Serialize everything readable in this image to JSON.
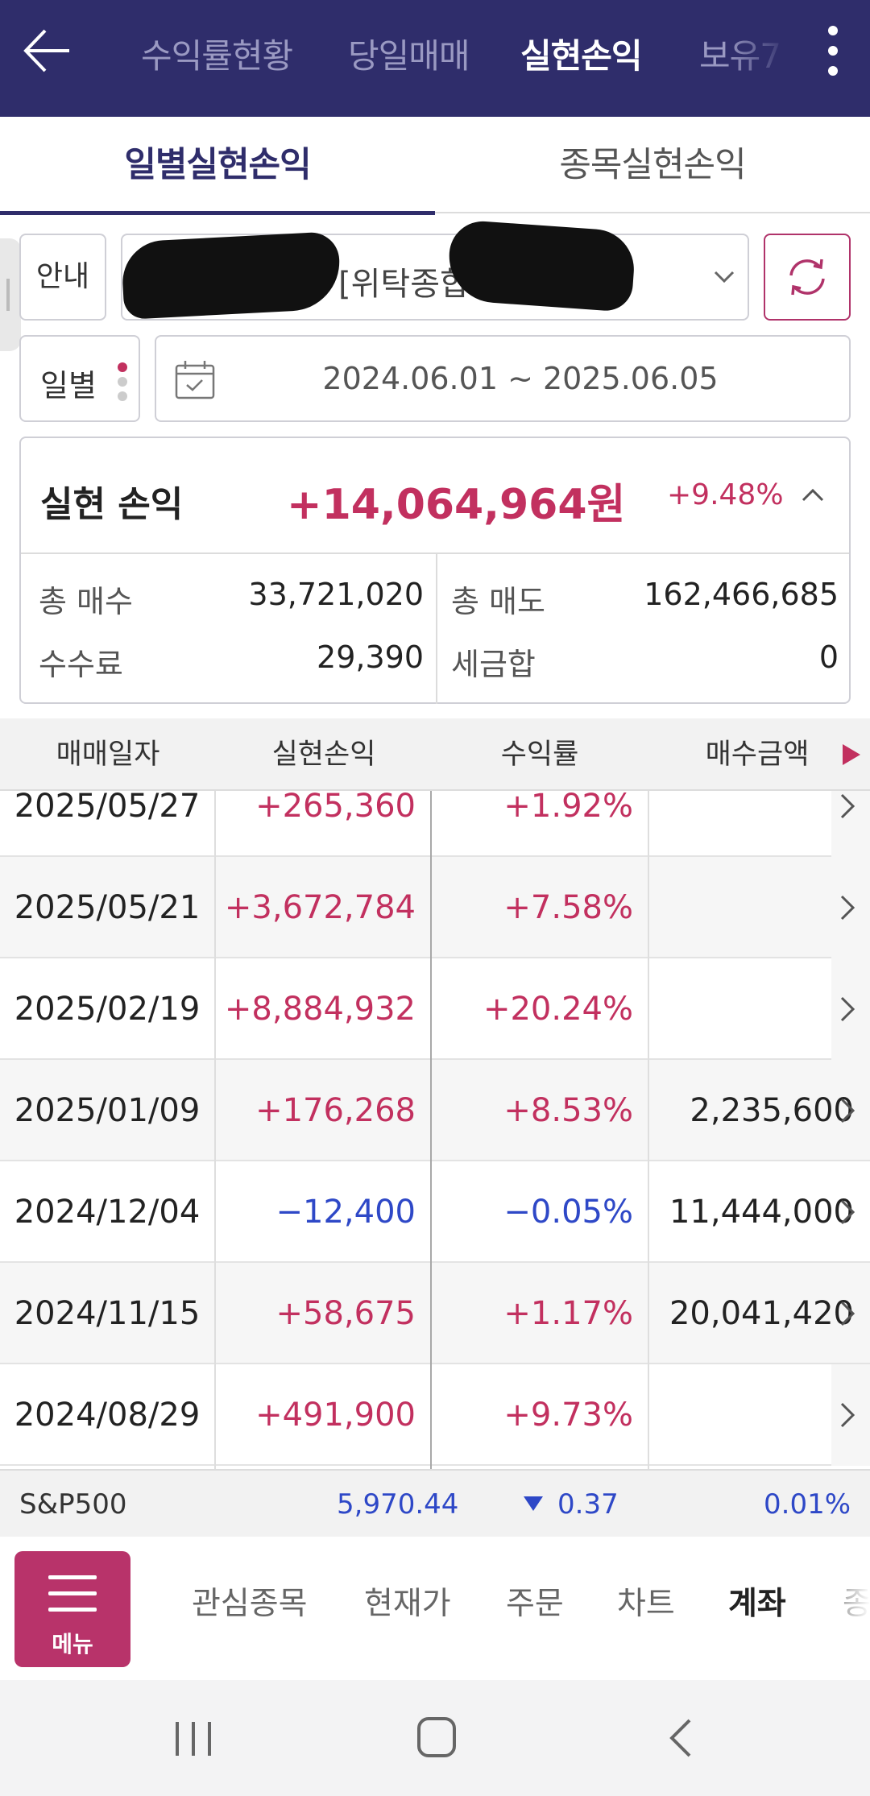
{
  "appbar": {
    "tabs": [
      {
        "label": "수익률현황",
        "active": false
      },
      {
        "label": "당일매매",
        "active": false
      },
      {
        "label": "실현손익",
        "active": true
      },
      {
        "label": "보유7",
        "active": false
      }
    ],
    "back_icon": "arrow-left-icon",
    "more_icon": "kebab-menu-icon"
  },
  "subtabs": [
    {
      "label": "일별실현손익",
      "active": true
    },
    {
      "label": "종목실현손익",
      "active": false
    }
  ],
  "filters": {
    "guide_label": "안내",
    "account_label": "[위탁종합",
    "period_label": "일별",
    "date_range": "2024.06.01 ~ 2025.06.05",
    "refresh_icon": "refresh-icon",
    "calendar_icon": "calendar-icon"
  },
  "summary": {
    "title": "실현 손익",
    "amount": "+14,064,964원",
    "rate": "+9.48%",
    "total_buy_label": "총 매수",
    "total_buy": "33,721,020",
    "total_sell_label": "총 매도",
    "total_sell": "162,466,685",
    "fee_label": "수수료",
    "fee": "29,390",
    "tax_label": "세금합",
    "tax": "0"
  },
  "table": {
    "columns": [
      "매매일자",
      "실현손익",
      "수익률",
      "매수금액"
    ],
    "rows": [
      {
        "date": "2025/05/27",
        "pl": "+265,360",
        "rate": "+1.92%",
        "buy": "",
        "sign": "pos"
      },
      {
        "date": "2025/05/21",
        "pl": "+3,672,784",
        "rate": "+7.58%",
        "buy": "",
        "sign": "pos"
      },
      {
        "date": "2025/02/19",
        "pl": "+8,884,932",
        "rate": "+20.24%",
        "buy": "",
        "sign": "pos"
      },
      {
        "date": "2025/01/09",
        "pl": "+176,268",
        "rate": "+8.53%",
        "buy": "2,235,600",
        "sign": "pos"
      },
      {
        "date": "2024/12/04",
        "pl": "−12,400",
        "rate": "−0.05%",
        "buy": "11,444,000",
        "sign": "neg"
      },
      {
        "date": "2024/11/15",
        "pl": "+58,675",
        "rate": "+1.17%",
        "buy": "20,041,420",
        "sign": "pos"
      },
      {
        "date": "2024/08/29",
        "pl": "+491,900",
        "rate": "+9.73%",
        "buy": "",
        "sign": "pos"
      }
    ]
  },
  "ticker": {
    "name": "S&P500",
    "value": "5,970.44",
    "change": "0.37",
    "change_pct": "0.01%"
  },
  "bottomnav": {
    "menu_label": "메뉴",
    "items": [
      {
        "label": "관심종목",
        "active": false
      },
      {
        "label": "현재가",
        "active": false
      },
      {
        "label": "주문",
        "active": false
      },
      {
        "label": "차트",
        "active": false
      },
      {
        "label": "계좌",
        "active": true
      },
      {
        "label": "종",
        "active": false
      }
    ]
  },
  "colors": {
    "brand_navy": "#2f2d6b",
    "positive": "#c2305f",
    "negative": "#2e48c7",
    "menu_button": "#b8336a"
  }
}
